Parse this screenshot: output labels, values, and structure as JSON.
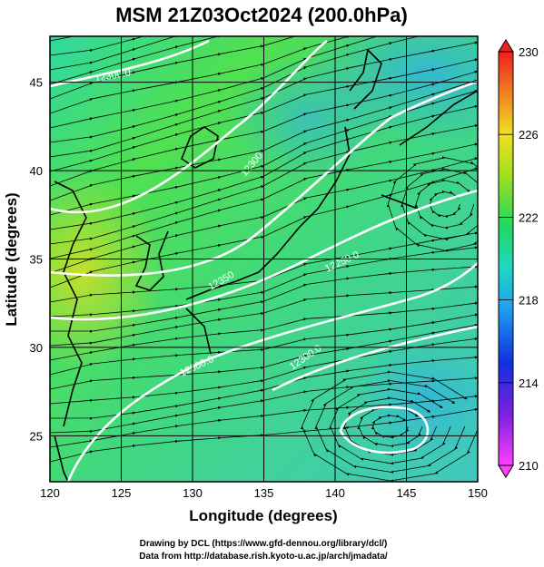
{
  "title": "MSM 21Z03Oct2024 (200.0hPa)",
  "xaxis": {
    "label": "Longitude (degrees)",
    "range": [
      120,
      150
    ],
    "ticks": [
      "120",
      "125",
      "130",
      "135",
      "140",
      "145",
      "150"
    ]
  },
  "yaxis": {
    "label": "Latitude  (degrees)",
    "range": [
      22.4,
      47.6
    ],
    "ticks": [
      "25",
      "30",
      "35",
      "40",
      "45"
    ]
  },
  "colorbar": {
    "range": [
      210,
      230
    ],
    "ticks": [
      "210",
      "214",
      "218",
      "222",
      "226",
      "230"
    ],
    "orientation": "vertical",
    "placement": "right"
  },
  "contour_labels": [
    "12300.0",
    "12300",
    "12350",
    "12300.0",
    "12300.0",
    "12250.0"
  ],
  "credit_lines": [
    "Drawing by DCL (https://www.gfd-dennou.org/library/dcl/)",
    "Data from http://database.rish.kyoto-u.ac.jp/arch/jmadata/"
  ],
  "colors": {
    "temp_low": "#ff44ff",
    "temp_mid": "#20d080",
    "temp_high": "#ff2020",
    "contour": "#ffffff",
    "coast": "#000000",
    "streamline": "#000000"
  }
}
